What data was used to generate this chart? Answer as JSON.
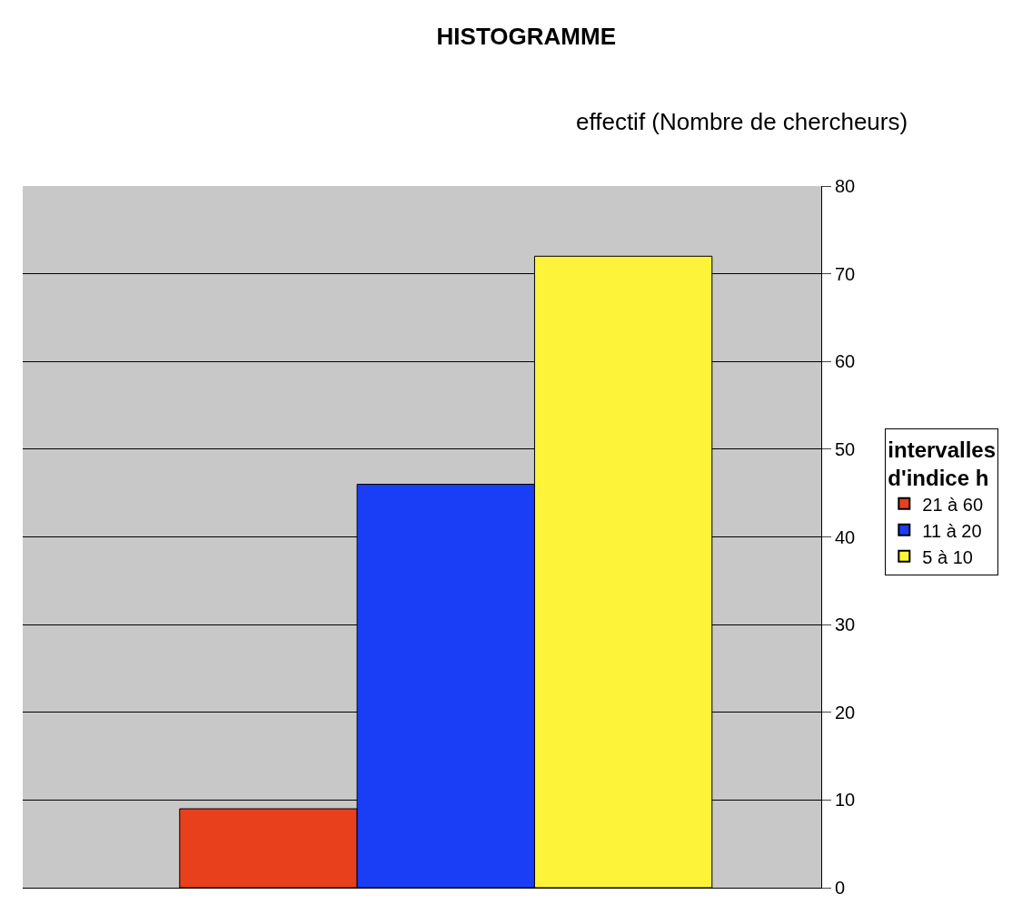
{
  "chart_data": {
    "type": "bar",
    "title": "HISTOGRAMME",
    "ylabel": "effectif (Nombre de chercheurs)",
    "legend_title": "intervalles d'indice h",
    "categories": [
      null
    ],
    "series": [
      {
        "name": "21 à 60",
        "color": "#e8401c",
        "values": [
          9
        ]
      },
      {
        "name": "11 à 20",
        "color": "#1a3ef5",
        "values": [
          46
        ]
      },
      {
        "name": "5 à 10",
        "color": "#fdf43a",
        "values": [
          72
        ]
      }
    ],
    "ylim": [
      0,
      80
    ],
    "yticks": [
      0,
      10,
      20,
      30,
      40,
      50,
      60,
      70,
      80
    ],
    "grid": "y",
    "legend": "right"
  }
}
